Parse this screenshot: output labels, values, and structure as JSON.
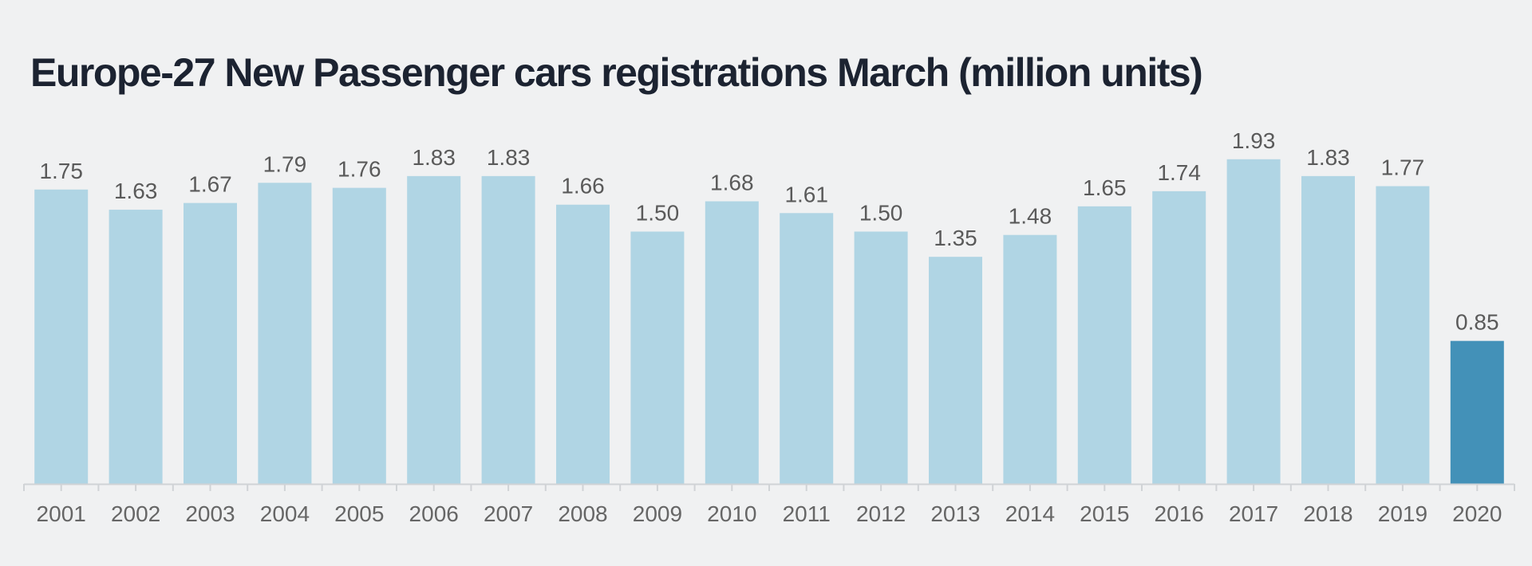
{
  "chart_data": {
    "type": "bar",
    "title": "Europe-27 New Passenger cars registrations March (million units)",
    "xlabel": "",
    "ylabel": "",
    "categories": [
      "2001",
      "2002",
      "2003",
      "2004",
      "2005",
      "2006",
      "2007",
      "2008",
      "2009",
      "2010",
      "2011",
      "2012",
      "2013",
      "2014",
      "2015",
      "2016",
      "2017",
      "2018",
      "2019",
      "2020"
    ],
    "values": [
      1.75,
      1.63,
      1.67,
      1.79,
      1.76,
      1.83,
      1.83,
      1.66,
      1.5,
      1.68,
      1.61,
      1.5,
      1.35,
      1.48,
      1.65,
      1.74,
      1.93,
      1.83,
      1.77,
      0.85
    ],
    "value_labels": [
      "1.75",
      "1.63",
      "1.67",
      "1.79",
      "1.76",
      "1.83",
      "1.83",
      "1.66",
      "1.50",
      "1.68",
      "1.61",
      "1.50",
      "1.35",
      "1.48",
      "1.65",
      "1.74",
      "1.93",
      "1.83",
      "1.77",
      "0.85"
    ],
    "ylim": [
      0,
      2.0
    ],
    "grid": false,
    "highlight_category": "2020",
    "colors": {
      "bar": "#b0d5e4",
      "highlight": "#4391b8",
      "axis": "#d0d3d6"
    }
  }
}
